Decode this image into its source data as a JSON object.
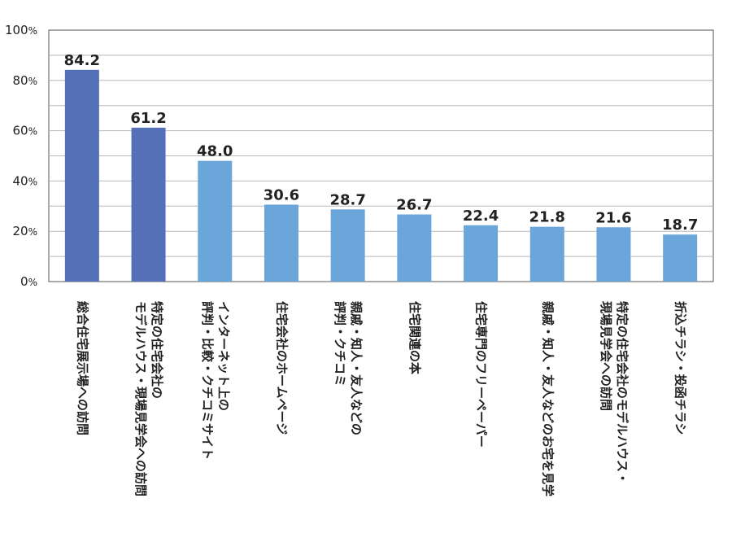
{
  "chart_data": {
    "type": "bar",
    "categories": [
      [
        "総合住宅展示場への訪問"
      ],
      [
        "特定の住宅会社の",
        "モデルハウス・現場見学会への訪問"
      ],
      [
        "インターネット上の",
        "評判・比較・クチコミサイト"
      ],
      [
        "住宅会社のホームページ"
      ],
      [
        "親戚・知人・友人などの",
        "評判・クチコミ"
      ],
      [
        "住宅関連の本"
      ],
      [
        "住宅専門のフリーペーパー"
      ],
      [
        "親戚・知人・友人などのお宅を見学"
      ],
      [
        "特定の住宅会社のモデルハウス・",
        "現場見学会への訪問"
      ],
      [
        "折込チラシ・投函チラシ"
      ]
    ],
    "values": [
      84.2,
      61.2,
      48.0,
      30.6,
      28.7,
      26.7,
      22.4,
      21.8,
      21.6,
      18.7
    ],
    "value_labels": [
      "84.2",
      "61.2",
      "48.0",
      "30.6",
      "28.7",
      "26.7",
      "22.4",
      "21.8",
      "21.6",
      "18.7"
    ],
    "ylim": [
      0,
      100
    ],
    "yticks": [
      0,
      20,
      40,
      60,
      80,
      100
    ],
    "ytick_unit": "%",
    "grid": true,
    "colors": [
      "#5470b8",
      "#5470b8",
      "#6aa6da",
      "#6aa6da",
      "#6aa6da",
      "#6aa6da",
      "#6aa6da",
      "#6aa6da",
      "#6aa6da",
      "#6aa6da"
    ]
  }
}
